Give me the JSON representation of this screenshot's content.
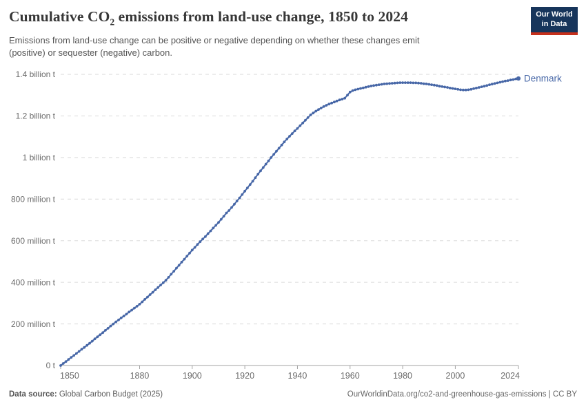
{
  "header": {
    "title_pre": "Cumulative CO",
    "title_sub": "2",
    "title_post": " emissions from land-use change, 1850 to 2024",
    "subtitle_line1": "Emissions from land-use change can be positive or negative depending on whether these changes emit",
    "subtitle_line2": "(positive) or sequester (negative) carbon.",
    "logo": {
      "line1": "Our World",
      "line2": "in Data"
    }
  },
  "footer": {
    "source_label": "Data source:",
    "source_value": " Global Carbon Budget (2025)",
    "link": "OurWorldinData.org/co2-and-greenhouse-gas-emissions | CC BY"
  },
  "theme": {
    "line_color": "#4767a7",
    "logo_bg": "#17355b",
    "logo_accent": "#c5301c",
    "grid_color": "#dadada",
    "axis_color": "#a3a3a3",
    "tick_label_color": "#6b6b6b"
  },
  "chart_data": {
    "type": "line",
    "title": "Cumulative CO₂ emissions from land-use change, 1850 to 2024",
    "subtitle": "Emissions from land-use change can be positive or negative depending on whether these changes emit (positive) or sequester (negative) carbon.",
    "xlabel": "",
    "ylabel": "",
    "unit": "tonnes of CO₂",
    "values_unit": "million tonnes",
    "xlim": [
      1850,
      2024
    ],
    "ylim": [
      0,
      1400
    ],
    "grid": "horizontal-dashed",
    "legend_position": "end-of-line-label",
    "x_ticks": [
      1850,
      1880,
      1900,
      1920,
      1940,
      1960,
      1980,
      2000,
      2024
    ],
    "y_ticks": [
      {
        "value": 0,
        "label": "0 t"
      },
      {
        "value": 200,
        "label": "200 million t"
      },
      {
        "value": 400,
        "label": "400 million t"
      },
      {
        "value": 600,
        "label": "600 million t"
      },
      {
        "value": 800,
        "label": "800 million t"
      },
      {
        "value": 1000,
        "label": "1 billion t"
      },
      {
        "value": 1200,
        "label": "1.2 billion t"
      },
      {
        "value": 1400,
        "label": "1.4 billion t"
      }
    ],
    "series": [
      {
        "name": "Denmark",
        "color": "#4767a7",
        "year_start": 1850,
        "year_end": 2024,
        "values_million_t": [
          0,
          10,
          19,
          29,
          39,
          48,
          58,
          68,
          78,
          87,
          97,
          107,
          117,
          128,
          138,
          148,
          158,
          169,
          179,
          190,
          200,
          210,
          219,
          229,
          238,
          247,
          257,
          266,
          276,
          285,
          295,
          306,
          318,
          329,
          341,
          352,
          364,
          375,
          387,
          398,
          410,
          424,
          439,
          453,
          468,
          482,
          497,
          511,
          526,
          540,
          555,
          568,
          582,
          595,
          608,
          620,
          634,
          647,
          661,
          674,
          688,
          703,
          718,
          733,
          745,
          760,
          775,
          791,
          806,
          822,
          838,
          854,
          870,
          886,
          903,
          920,
          936,
          952,
          968,
          984,
          1000,
          1015,
          1030,
          1045,
          1060,
          1075,
          1089,
          1102,
          1115,
          1128,
          1140,
          1153,
          1166,
          1179,
          1192,
          1205,
          1214,
          1223,
          1231,
          1238,
          1245,
          1251,
          1257,
          1262,
          1267,
          1272,
          1277,
          1281,
          1285,
          1300,
          1315,
          1322,
          1326,
          1329,
          1332,
          1335,
          1338,
          1341,
          1344,
          1346,
          1348,
          1350,
          1352,
          1354,
          1355,
          1356,
          1357,
          1358,
          1359,
          1360,
          1360,
          1360,
          1360,
          1360,
          1359,
          1359,
          1358,
          1357,
          1355,
          1354,
          1352,
          1350,
          1348,
          1346,
          1343,
          1341,
          1339,
          1337,
          1334,
          1332,
          1330,
          1328,
          1326,
          1325,
          1325,
          1326,
          1328,
          1331,
          1334,
          1337,
          1340,
          1343,
          1346,
          1350,
          1353,
          1356,
          1359,
          1362,
          1365,
          1368,
          1370,
          1373,
          1375,
          1378,
          1380
        ]
      }
    ]
  }
}
